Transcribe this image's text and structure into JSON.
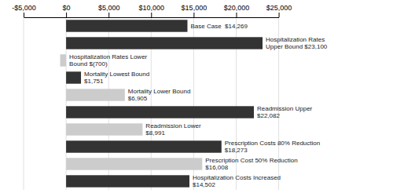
{
  "chart_data": {
    "type": "bar",
    "orientation": "horizontal",
    "categories": [
      "Base Case  $14,269",
      "Hospitalization Rates\nUpper Bound $23,100",
      "Hospitalization Rates Lower\nBound $(700)",
      "Mortality Lowest Bound\n$1,751",
      "Mortality Lower Bound\n$6,905",
      "Readmission Upper\n$22,082",
      "Readmission Lower\n$8,991",
      "Prescription Costs 80% Reduction\n$18,273",
      "Prescription Cost 50% Reduction\n$16,008",
      "Hospitalization Costs Increased\n$14,502"
    ],
    "values": [
      14269,
      23100,
      -700,
      1751,
      6905,
      22082,
      8991,
      18273,
      16008,
      14502
    ],
    "colors": [
      "#333333",
      "#333333",
      "#cccccc",
      "#333333",
      "#cccccc",
      "#333333",
      "#cccccc",
      "#333333",
      "#cccccc",
      "#333333"
    ],
    "xlim": [
      -5000,
      25000
    ],
    "xticks": [
      {
        "value": -5000,
        "label": "-$5,000"
      },
      {
        "value": 0,
        "label": "$0"
      },
      {
        "value": 5000,
        "label": "$5,000"
      },
      {
        "value": 10000,
        "label": "$10,000"
      },
      {
        "value": 15000,
        "label": "$15,000"
      },
      {
        "value": 20000,
        "label": "$20,000"
      },
      {
        "value": 25000,
        "label": "$25,000"
      }
    ],
    "grid": true,
    "tick_labels": "x"
  }
}
